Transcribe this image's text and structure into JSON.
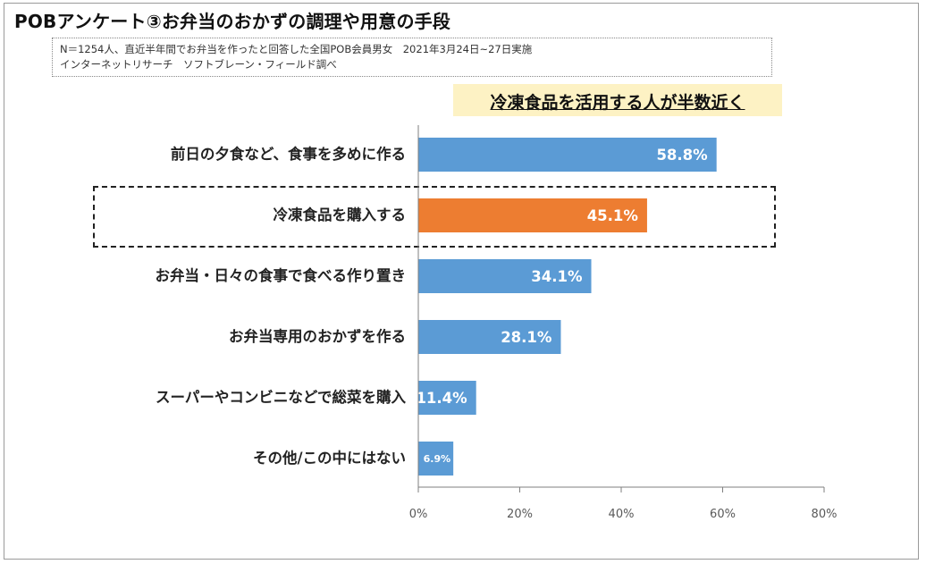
{
  "title": "POBアンケート③お弁当のおかずの調理や用意の手段",
  "note": {
    "line1": "N＝1254人、直近半年間でお弁当を作ったと回答した全国POB会員男女　2021年3月24日~27日実施",
    "line2": "インターネットリサーチ　ソフトブレーン・フィールド調べ"
  },
  "callout": "冷凍食品を活用する人が半数近く",
  "colors": {
    "bar": "#5b9bd5",
    "bar_highlight": "#ed7d31",
    "axis": "#7f7f7f",
    "callout_bg": "#fdf2c4"
  },
  "chart_data": {
    "type": "bar",
    "orientation": "horizontal",
    "categories": [
      "前日の夕食など、食事を多めに作る",
      "冷凍食品を購入する",
      "お弁当・日々の食事で食べる作り置き",
      "お弁当専用のおかずを作る",
      "スーパーやコンビニなどで総菜を購入",
      "その他/この中にはない"
    ],
    "values": [
      58.8,
      45.1,
      34.1,
      28.1,
      11.4,
      6.9
    ],
    "value_labels": [
      "58.8%",
      "45.1%",
      "34.1%",
      "28.1%",
      "11.4%",
      "6.9%"
    ],
    "highlight_index": 1,
    "xlim": [
      0,
      80
    ],
    "x_ticks": [
      0,
      20,
      40,
      60,
      80
    ],
    "x_tick_labels": [
      "0%",
      "20%",
      "40%",
      "60%",
      "80%"
    ],
    "grid": false
  }
}
